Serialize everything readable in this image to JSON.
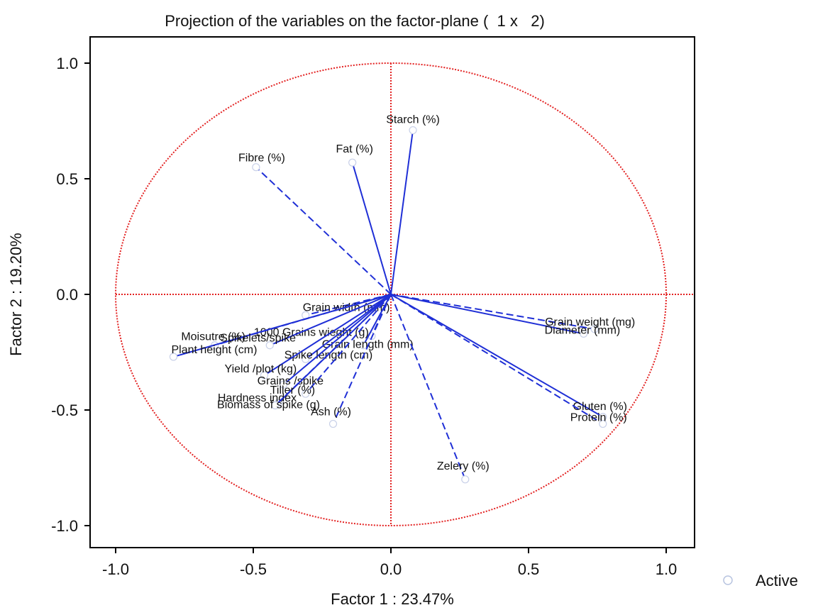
{
  "chart_data": {
    "type": "scatter",
    "title": "Projection of the variables on the factor-plane (  1 x   2)",
    "xlabel": "Factor 1 : 23.47%",
    "ylabel": "Factor 2 : 19.20%",
    "xlim": [
      -1.1,
      1.1
    ],
    "ylim": [
      -1.1,
      1.1
    ],
    "xticks": [
      "-1.0",
      "-0.5",
      "0.0",
      "0.5",
      "1.0"
    ],
    "yticks": [
      "1.0",
      "0.5",
      "0.0",
      "-0.5",
      "-1.0"
    ],
    "legend": {
      "label": "Active",
      "position": "bottom-right"
    },
    "circle_radius": 1.0,
    "colors": {
      "vector": "#1f2fd6",
      "circle": "#e32222",
      "axis": "#e32222"
    },
    "series": [
      {
        "name": "Active",
        "points": [
          {
            "label": "Starch (%)",
            "x": 0.08,
            "y": 0.71,
            "dashed": false
          },
          {
            "label": "Fat (%)",
            "x": -0.14,
            "y": 0.57,
            "dashed": false
          },
          {
            "label": "Fibre (%)",
            "x": -0.49,
            "y": 0.55,
            "dashed": true
          },
          {
            "label": "Grain width (mm)",
            "x": -0.31,
            "y": -0.09,
            "dashed": true
          },
          {
            "label": "1000 Grains wieght (g)",
            "x": -0.07,
            "y": -0.18,
            "dashed": true
          },
          {
            "label": "Grain length (mm)",
            "x": -0.1,
            "y": -0.22,
            "dashed": false
          },
          {
            "label": "Moisutre (%)",
            "x": -0.64,
            "y": -0.22,
            "dashed": true
          },
          {
            "label": "Plant height (cm)",
            "x": -0.79,
            "y": -0.27,
            "dashed": false
          },
          {
            "label": "Spikelets/spike",
            "x": -0.44,
            "y": -0.22,
            "dashed": false
          },
          {
            "label": "Spike length (cm)",
            "x": -0.31,
            "y": -0.28,
            "dashed": false
          },
          {
            "label": "Yield /plot (kg)",
            "x": -0.46,
            "y": -0.35,
            "dashed": false
          },
          {
            "label": "Grains /spike",
            "x": -0.39,
            "y": -0.39,
            "dashed": false
          },
          {
            "label": "Hardness index",
            "x": -0.41,
            "y": -0.47,
            "dashed": false
          },
          {
            "label": "Tiller (%)",
            "x": -0.31,
            "y": -0.43,
            "dashed": true
          },
          {
            "label": "Biomass of spike (g)",
            "x": -0.42,
            "y": -0.48,
            "dashed": true
          },
          {
            "label": "Ash (%)",
            "x": -0.21,
            "y": -0.56,
            "dashed": true
          },
          {
            "label": "Grain weight (mg)",
            "x": 0.74,
            "y": -0.15,
            "dashed": true
          },
          {
            "label": "Diameter (mm)",
            "x": 0.7,
            "y": -0.17,
            "dashed": false
          },
          {
            "label": "Gluten (%)",
            "x": 0.77,
            "y": -0.53,
            "dashed": false
          },
          {
            "label": "Protein (%)",
            "x": 0.77,
            "y": -0.56,
            "dashed": true
          },
          {
            "label": "Zelery (%)",
            "x": 0.27,
            "y": -0.8,
            "dashed": true
          }
        ]
      }
    ]
  }
}
